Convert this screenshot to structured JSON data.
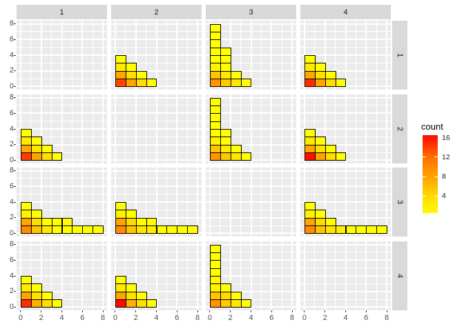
{
  "chart_data": {
    "type": "heatmap",
    "title": "",
    "xlabel": "",
    "ylabel": "",
    "facet_col_labels": [
      "1",
      "2",
      "3",
      "4"
    ],
    "facet_row_labels": [
      "1",
      "2",
      "3",
      "4"
    ],
    "x_ticks": [
      0,
      2,
      4,
      6,
      8
    ],
    "y_ticks": [
      0,
      2,
      4,
      6,
      8
    ],
    "x_range": [
      -0.4,
      8.4
    ],
    "y_range": [
      -0.4,
      8.4
    ],
    "grid": true,
    "legend": {
      "title": "count",
      "position": "right",
      "tick_values": [
        16,
        12,
        8,
        4
      ],
      "ticks_with_dash": [
        12,
        8,
        4
      ],
      "scale_domain": [
        0.5,
        16.5
      ],
      "low_color": "#FFFF00",
      "high_color": "#FF0000",
      "gradient_stops": [
        "#FF0A00",
        "#FF7300",
        "#FFA600",
        "#FFD900",
        "#FFFC00"
      ]
    },
    "tile_format": [
      "x",
      "y",
      "count",
      "color"
    ],
    "panels": [
      {
        "row": 1,
        "col": 1,
        "tiles": []
      },
      {
        "row": 1,
        "col": 2,
        "tiles": [
          [
            0,
            0,
            13,
            "#FF4500"
          ],
          [
            0,
            1,
            8,
            "#FFA800"
          ],
          [
            0,
            2,
            3,
            "#FFE900"
          ],
          [
            0,
            3,
            1,
            "#FFFF00"
          ],
          [
            1,
            0,
            8,
            "#FFA300"
          ],
          [
            1,
            1,
            4,
            "#FFE200"
          ],
          [
            1,
            2,
            1,
            "#FFFF00"
          ],
          [
            2,
            0,
            4,
            "#FFDD00"
          ],
          [
            2,
            1,
            1,
            "#FFFF00"
          ],
          [
            3,
            0,
            1,
            "#FFFF00"
          ]
        ]
      },
      {
        "row": 1,
        "col": 3,
        "tiles": [
          [
            0,
            0,
            9,
            "#FF9300"
          ],
          [
            0,
            1,
            6,
            "#FFC300"
          ],
          [
            0,
            2,
            2,
            "#FFF200"
          ],
          [
            0,
            3,
            1,
            "#FFFF00"
          ],
          [
            0,
            4,
            1,
            "#FFFF00"
          ],
          [
            0,
            5,
            1,
            "#FFFF00"
          ],
          [
            0,
            6,
            1,
            "#FFFF00"
          ],
          [
            0,
            7,
            1,
            "#FFFF00"
          ],
          [
            1,
            0,
            6,
            "#FFC900"
          ],
          [
            1,
            1,
            3,
            "#FFEA00"
          ],
          [
            1,
            2,
            1,
            "#FFFF00"
          ],
          [
            1,
            3,
            1,
            "#FFFF00"
          ],
          [
            1,
            4,
            1,
            "#FFFF00"
          ],
          [
            2,
            0,
            3,
            "#FFE800"
          ],
          [
            2,
            1,
            1,
            "#FFFF00"
          ],
          [
            3,
            0,
            1,
            "#FFFF00"
          ]
        ]
      },
      {
        "row": 1,
        "col": 4,
        "tiles": [
          [
            0,
            0,
            14,
            "#FF2B00"
          ],
          [
            0,
            1,
            8,
            "#FFA800"
          ],
          [
            0,
            2,
            3,
            "#FFE900"
          ],
          [
            0,
            3,
            1,
            "#FFFF00"
          ],
          [
            1,
            0,
            8,
            "#FFA300"
          ],
          [
            1,
            1,
            4,
            "#FFE200"
          ],
          [
            1,
            2,
            1,
            "#FFFF00"
          ],
          [
            2,
            0,
            4,
            "#FFDD00"
          ],
          [
            2,
            1,
            1,
            "#FFFF00"
          ],
          [
            3,
            0,
            1,
            "#FFFF00"
          ]
        ]
      },
      {
        "row": 2,
        "col": 1,
        "tiles": [
          [
            0,
            0,
            13,
            "#FF3C00"
          ],
          [
            0,
            1,
            8,
            "#FFA800"
          ],
          [
            0,
            2,
            3,
            "#FFE900"
          ],
          [
            0,
            3,
            1,
            "#FFFF00"
          ],
          [
            1,
            0,
            8,
            "#FFA300"
          ],
          [
            1,
            1,
            4,
            "#FFE200"
          ],
          [
            1,
            2,
            1,
            "#FFFF00"
          ],
          [
            2,
            0,
            4,
            "#FFDD00"
          ],
          [
            2,
            1,
            1,
            "#FFFF00"
          ],
          [
            3,
            0,
            1,
            "#FFFF00"
          ]
        ]
      },
      {
        "row": 2,
        "col": 2,
        "tiles": []
      },
      {
        "row": 2,
        "col": 3,
        "tiles": [
          [
            0,
            0,
            9,
            "#FF9300"
          ],
          [
            0,
            1,
            6,
            "#FFC300"
          ],
          [
            0,
            2,
            2,
            "#FFF200"
          ],
          [
            0,
            3,
            1,
            "#FFFF00"
          ],
          [
            0,
            4,
            1,
            "#FFFF00"
          ],
          [
            0,
            5,
            1,
            "#FFFF00"
          ],
          [
            0,
            6,
            1,
            "#FFFF00"
          ],
          [
            0,
            7,
            1,
            "#FFFF00"
          ],
          [
            1,
            0,
            6,
            "#FFC900"
          ],
          [
            1,
            1,
            3,
            "#FFEA00"
          ],
          [
            1,
            2,
            1,
            "#FFFF00"
          ],
          [
            1,
            3,
            1,
            "#FFFF00"
          ],
          [
            2,
            0,
            3,
            "#FFE800"
          ],
          [
            2,
            1,
            1,
            "#FFFF00"
          ],
          [
            3,
            0,
            1,
            "#FFFF00"
          ]
        ]
      },
      {
        "row": 2,
        "col": 4,
        "tiles": [
          [
            0,
            0,
            16,
            "#FF0D00"
          ],
          [
            0,
            1,
            8,
            "#FFA800"
          ],
          [
            0,
            2,
            3,
            "#FFE900"
          ],
          [
            0,
            3,
            1,
            "#FFFF00"
          ],
          [
            1,
            0,
            8,
            "#FFA300"
          ],
          [
            1,
            1,
            4,
            "#FFE200"
          ],
          [
            1,
            2,
            1,
            "#FFFF00"
          ],
          [
            2,
            0,
            4,
            "#FFDD00"
          ],
          [
            2,
            1,
            1,
            "#FFFF00"
          ],
          [
            3,
            0,
            1,
            "#FFFF00"
          ]
        ]
      },
      {
        "row": 3,
        "col": 1,
        "tiles": [
          [
            0,
            0,
            10,
            "#FF8C00"
          ],
          [
            0,
            1,
            8,
            "#FFA500"
          ],
          [
            0,
            2,
            2,
            "#FFF200"
          ],
          [
            0,
            3,
            1,
            "#FFFF00"
          ],
          [
            1,
            0,
            6,
            "#FFC300"
          ],
          [
            1,
            1,
            4,
            "#FFDC00"
          ],
          [
            1,
            2,
            1,
            "#FFFF00"
          ],
          [
            2,
            0,
            3,
            "#FFE800"
          ],
          [
            2,
            1,
            1,
            "#FFFF00"
          ],
          [
            3,
            0,
            1,
            "#FFFF00"
          ],
          [
            3,
            1,
            1,
            "#FFFF00"
          ],
          [
            4,
            0,
            1,
            "#FFFF00"
          ],
          [
            4,
            1,
            1,
            "#FFFF00"
          ],
          [
            5,
            0,
            1,
            "#FFFF00"
          ],
          [
            6,
            0,
            1,
            "#FFFF00"
          ],
          [
            7,
            0,
            1,
            "#FFFF00"
          ]
        ]
      },
      {
        "row": 3,
        "col": 2,
        "tiles": [
          [
            0,
            0,
            10,
            "#FF8C00"
          ],
          [
            0,
            1,
            8,
            "#FFA500"
          ],
          [
            0,
            2,
            2,
            "#FFF200"
          ],
          [
            0,
            3,
            1,
            "#FFFF00"
          ],
          [
            1,
            0,
            6,
            "#FFC300"
          ],
          [
            1,
            1,
            4,
            "#FFDC00"
          ],
          [
            1,
            2,
            1,
            "#FFFF00"
          ],
          [
            2,
            0,
            3,
            "#FFE500"
          ],
          [
            2,
            1,
            1,
            "#FFFF00"
          ],
          [
            3,
            0,
            2,
            "#FFEE00"
          ],
          [
            3,
            1,
            1,
            "#FFFF00"
          ],
          [
            4,
            0,
            1,
            "#FFFF00"
          ],
          [
            5,
            0,
            1,
            "#FFFF00"
          ],
          [
            6,
            0,
            1,
            "#FFFF00"
          ],
          [
            7,
            0,
            1,
            "#FFFF00"
          ]
        ]
      },
      {
        "row": 3,
        "col": 3,
        "tiles": []
      },
      {
        "row": 3,
        "col": 4,
        "tiles": [
          [
            0,
            0,
            10,
            "#FF8C00"
          ],
          [
            0,
            1,
            8,
            "#FFA500"
          ],
          [
            0,
            2,
            2,
            "#FFF200"
          ],
          [
            0,
            3,
            1,
            "#FFFF00"
          ],
          [
            1,
            0,
            6,
            "#FFC300"
          ],
          [
            1,
            1,
            4,
            "#FFDC00"
          ],
          [
            1,
            2,
            1,
            "#FFFF00"
          ],
          [
            2,
            0,
            3,
            "#FFE500"
          ],
          [
            2,
            1,
            1,
            "#FFFF00"
          ],
          [
            3,
            0,
            2,
            "#FFF000"
          ],
          [
            4,
            0,
            1,
            "#FFFF00"
          ],
          [
            5,
            0,
            1,
            "#FFFF00"
          ],
          [
            6,
            0,
            1,
            "#FFFF00"
          ],
          [
            7,
            0,
            1,
            "#FFFF00"
          ]
        ]
      },
      {
        "row": 4,
        "col": 1,
        "tiles": [
          [
            0,
            0,
            14,
            "#FF2D00"
          ],
          [
            0,
            1,
            8,
            "#FFA500"
          ],
          [
            0,
            2,
            3,
            "#FFE900"
          ],
          [
            0,
            3,
            1,
            "#FFFF00"
          ],
          [
            1,
            0,
            7,
            "#FFB000"
          ],
          [
            1,
            1,
            4,
            "#FFE200"
          ],
          [
            1,
            2,
            1,
            "#FFFF00"
          ],
          [
            2,
            0,
            4,
            "#FFDD00"
          ],
          [
            2,
            1,
            1,
            "#FFFF00"
          ],
          [
            3,
            0,
            1,
            "#FFFF00"
          ]
        ]
      },
      {
        "row": 4,
        "col": 2,
        "tiles": [
          [
            0,
            0,
            16,
            "#FF0800"
          ],
          [
            0,
            1,
            8,
            "#FFA500"
          ],
          [
            0,
            2,
            3,
            "#FFE900"
          ],
          [
            0,
            3,
            1,
            "#FFFF00"
          ],
          [
            1,
            0,
            7,
            "#FFB000"
          ],
          [
            1,
            1,
            4,
            "#FFE200"
          ],
          [
            1,
            2,
            1,
            "#FFFF00"
          ],
          [
            2,
            0,
            4,
            "#FFDD00"
          ],
          [
            2,
            1,
            1,
            "#FFFF00"
          ],
          [
            3,
            0,
            1,
            "#FFFF00"
          ]
        ]
      },
      {
        "row": 4,
        "col": 3,
        "tiles": [
          [
            0,
            0,
            9,
            "#FF9300"
          ],
          [
            0,
            1,
            6,
            "#FFC300"
          ],
          [
            0,
            2,
            2,
            "#FFF200"
          ],
          [
            0,
            3,
            2,
            "#FFF800"
          ],
          [
            0,
            4,
            1,
            "#FFFF00"
          ],
          [
            0,
            5,
            1,
            "#FFFF00"
          ],
          [
            0,
            6,
            1,
            "#FFFF00"
          ],
          [
            0,
            7,
            1,
            "#FFFF00"
          ],
          [
            1,
            0,
            6,
            "#FFC900"
          ],
          [
            1,
            1,
            4,
            "#FFDC00"
          ],
          [
            1,
            2,
            1,
            "#FFFF00"
          ],
          [
            2,
            0,
            3,
            "#FFE800"
          ],
          [
            2,
            1,
            1,
            "#FFFF00"
          ],
          [
            3,
            0,
            1,
            "#FFFF00"
          ]
        ]
      },
      {
        "row": 4,
        "col": 4,
        "tiles": []
      }
    ]
  },
  "colors": {
    "background": "#FFFFFF",
    "panel_background": "#EBEBEB",
    "strip_background": "#D9D9D9",
    "gridline": "#FFFFFF",
    "tile_border": "#000000",
    "axis_text": "#4D4D4D",
    "strip_text": "#1A1A1A"
  }
}
